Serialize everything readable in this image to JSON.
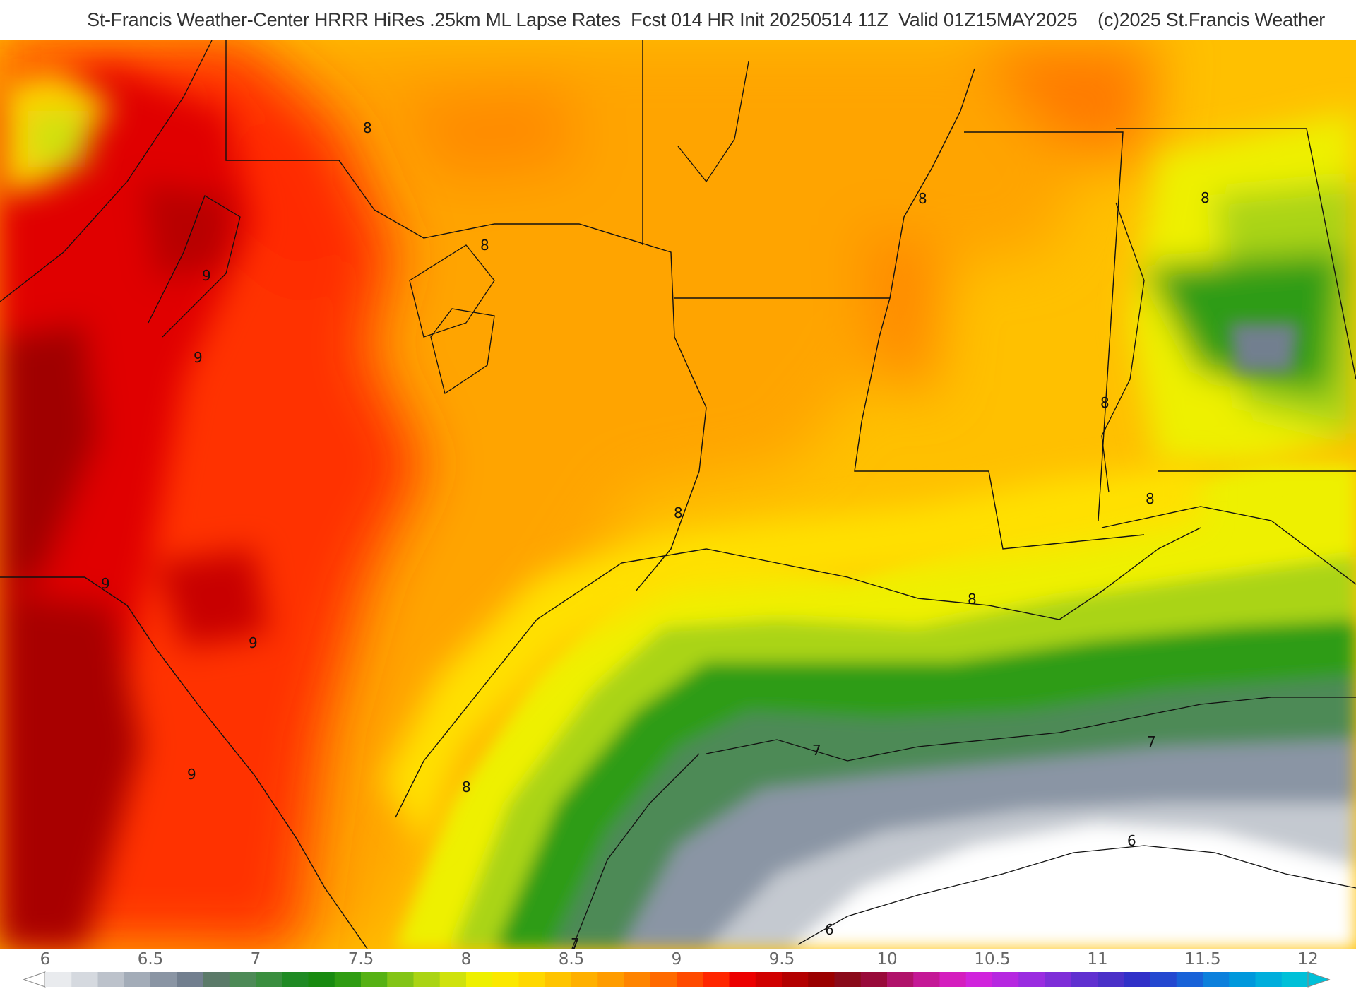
{
  "header": {
    "title": "St-Francis Weather-Center HRRR HiRes .25km ML Lapse Rates  Fcst 014 HR Init 20250514 11Z  Valid 01Z15MAY2025    (c)2025 St.Francis Weather"
  },
  "map": {
    "field": "ML Lapse Rates",
    "contour_labels": [
      "8",
      "8",
      "8",
      "9",
      "9",
      "8",
      "9",
      "9",
      "9",
      "8",
      "8",
      "8",
      "8",
      "8",
      "7",
      "7",
      "6",
      "6",
      "7"
    ]
  },
  "colorbar": {
    "tick_labels": [
      "6",
      "6.5",
      "7",
      "7.5",
      "8",
      "8.5",
      "9",
      "9.5",
      "10",
      "10.5",
      "11",
      "11.5",
      "12"
    ],
    "colors": [
      "#e9ebee",
      "#d5d9df",
      "#bcc2cb",
      "#a3acb8",
      "#8a95a4",
      "#727f8f",
      "#5b7a69",
      "#4d8a57",
      "#3a8e3f",
      "#1f8a24",
      "#188a10",
      "#2f9c12",
      "#56b114",
      "#83c416",
      "#aad414",
      "#cfe20c",
      "#eef000",
      "#fbe800",
      "#ffd800",
      "#ffc400",
      "#ffb000",
      "#ff9c00",
      "#ff8400",
      "#ff6a00",
      "#ff4a00",
      "#ff2600",
      "#ec0000",
      "#d00000",
      "#b30000",
      "#9a0000",
      "#8a0a1a",
      "#990a3a",
      "#b0126a",
      "#c41896",
      "#d41ebe",
      "#d024dc",
      "#b628e0",
      "#9a2ce0",
      "#7e2ed8",
      "#6030d0",
      "#4a30c8",
      "#3030c8",
      "#2448d0",
      "#1862d8",
      "#0c80dc",
      "#0098dc",
      "#00aedc",
      "#00c0d8"
    ]
  }
}
